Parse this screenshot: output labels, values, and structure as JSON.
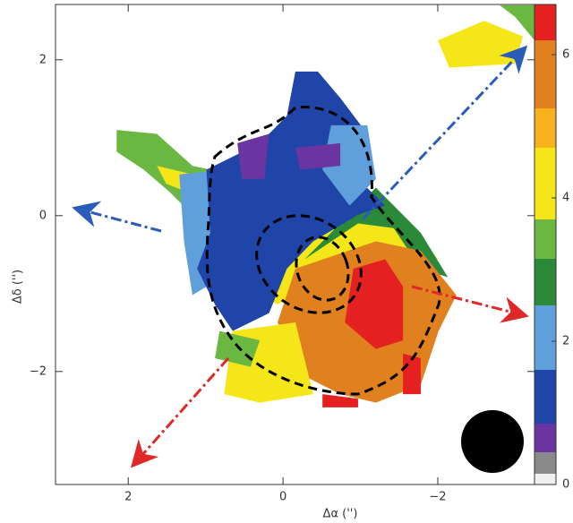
{
  "chart_data": {
    "type": "map",
    "xlabel": "Δα ('')",
    "ylabel": "Δδ ('')",
    "xlim": [
      2.94,
      -3.25
    ],
    "ylim": [
      -3.45,
      2.71
    ],
    "xticks": [
      2,
      0,
      {
        "value": -2,
        "label": "−2"
      }
    ],
    "yticks": [
      {
        "value": -2,
        "label": "−2"
      },
      0,
      2
    ],
    "colorbar": {
      "lim": [
        0,
        6.7
      ],
      "ticks": [
        0,
        2,
        4,
        6
      ],
      "levels": [
        0,
        0.15,
        0.45,
        0.85,
        1.6,
        2.5,
        3.15,
        3.7,
        4.7,
        5.25,
        6.2,
        6.7
      ],
      "colors": [
        "#f0f0f0",
        "#8a8a8a",
        "#6a35a0",
        "#1f45a8",
        "#5fa0dc",
        "#2a8a3a",
        "#6ab842",
        "#f5e61a",
        "#f7b21e",
        "#e0801e",
        "#e42020"
      ]
    },
    "regions": [
      {
        "value": 4.2,
        "points": [
          [
            -2.0,
            2.25
          ],
          [
            -2.6,
            2.5
          ],
          [
            -3.1,
            2.3
          ],
          [
            -3.0,
            1.95
          ],
          [
            -2.15,
            1.9
          ]
        ]
      },
      {
        "value": 3.4,
        "points": [
          [
            -2.8,
            2.7
          ],
          [
            -3.25,
            2.7
          ],
          [
            -3.25,
            2.25
          ],
          [
            -3.0,
            2.55
          ]
        ]
      },
      {
        "value": 3.4,
        "points": [
          [
            2.15,
            1.1
          ],
          [
            1.63,
            1.05
          ],
          [
            1.17,
            0.64
          ],
          [
            0.94,
            0.59
          ],
          [
            1.17,
            0.01
          ],
          [
            1.46,
            0.3
          ],
          [
            1.8,
            0.59
          ],
          [
            2.15,
            0.82
          ]
        ]
      },
      {
        "value": 4.2,
        "points": [
          [
            1.63,
            0.64
          ],
          [
            1.17,
            0.53
          ],
          [
            1.23,
            0.3
          ],
          [
            1.51,
            0.41
          ]
        ]
      },
      {
        "value": 4.2,
        "points": [
          [
            0.18,
            -0.45
          ],
          [
            -0.74,
            0.01
          ],
          [
            -1.55,
            -0.1
          ],
          [
            -2.01,
            -0.56
          ],
          [
            -1.43,
            -0.56
          ],
          [
            -0.51,
            -0.79
          ],
          [
            0.07,
            -1.14
          ],
          [
            0.3,
            -1.02
          ]
        ]
      },
      {
        "value": 2.8,
        "points": [
          [
            -1.2,
            0.36
          ],
          [
            -1.78,
            -0.22
          ],
          [
            -2.13,
            -0.79
          ],
          [
            -1.78,
            -0.68
          ],
          [
            -1.43,
            -0.16
          ],
          [
            -0.97,
            -0.1
          ],
          [
            -0.28,
            -0.56
          ],
          [
            -0.05,
            -0.79
          ]
        ]
      },
      {
        "value": 2.0,
        "points": [
          [
            1.34,
            0.53
          ],
          [
            0.76,
            0.59
          ],
          [
            0.65,
            -0.33
          ],
          [
            0.99,
            -0.91
          ],
          [
            1.17,
            -1.02
          ],
          [
            1.28,
            -0.33
          ]
        ]
      },
      {
        "value": 1.2,
        "points": [
          [
            0.99,
            0.59
          ],
          [
            0.3,
            0.93
          ],
          [
            -0.05,
            1.28
          ],
          [
            -0.16,
            1.85
          ],
          [
            -0.45,
            1.85
          ],
          [
            -0.74,
            1.51
          ],
          [
            -1.09,
            1.05
          ],
          [
            -0.97,
            0.47
          ],
          [
            -1.32,
            0.13
          ],
          [
            -0.97,
            0.01
          ],
          [
            -0.39,
            -0.33
          ],
          [
            -0.05,
            -0.68
          ],
          [
            0.18,
            -1.25
          ],
          [
            0.65,
            -1.48
          ],
          [
            0.88,
            -1.14
          ],
          [
            1.11,
            -0.68
          ],
          [
            0.94,
            -0.22
          ]
        ]
      },
      {
        "value": 2.0,
        "points": [
          [
            -0.62,
            1.16
          ],
          [
            -1.09,
            1.16
          ],
          [
            -1.2,
            0.47
          ],
          [
            -0.86,
            0.13
          ],
          [
            -0.51,
            0.59
          ]
        ]
      },
      {
        "value": 0.6,
        "points": [
          [
            0.59,
            0.93
          ],
          [
            0.18,
            1.05
          ],
          [
            0.24,
            0.47
          ],
          [
            0.53,
            0.47
          ]
        ]
      },
      {
        "value": 0.6,
        "points": [
          [
            -0.16,
            0.87
          ],
          [
            -0.74,
            0.93
          ],
          [
            -0.74,
            0.64
          ],
          [
            -0.22,
            0.59
          ]
        ]
      },
      {
        "value": 5.7,
        "points": [
          [
            -0.16,
            -0.68
          ],
          [
            -1.2,
            -0.33
          ],
          [
            -1.78,
            -0.45
          ],
          [
            -2.24,
            -1.02
          ],
          [
            -2.01,
            -1.48
          ],
          [
            -1.78,
            -2.17
          ],
          [
            -1.2,
            -2.4
          ],
          [
            -0.74,
            -2.29
          ],
          [
            -0.28,
            -2.06
          ],
          [
            0.07,
            -1.37
          ]
        ]
      },
      {
        "value": 6.4,
        "points": [
          [
            -0.91,
            -0.68
          ],
          [
            -1.32,
            -0.56
          ],
          [
            -1.55,
            -0.91
          ],
          [
            -1.55,
            -1.6
          ],
          [
            -1.2,
            -1.71
          ],
          [
            -0.8,
            -1.37
          ]
        ]
      },
      {
        "value": 6.4,
        "points": [
          [
            -0.51,
            -2.29
          ],
          [
            -0.97,
            -2.35
          ],
          [
            -0.97,
            -2.46
          ],
          [
            -0.51,
            -2.46
          ]
        ]
      },
      {
        "value": 6.4,
        "points": [
          [
            -1.55,
            -1.77
          ],
          [
            -1.78,
            -1.83
          ],
          [
            -1.78,
            -2.29
          ],
          [
            -1.55,
            -2.29
          ]
        ]
      },
      {
        "value": 4.2,
        "points": [
          [
            0.65,
            -1.48
          ],
          [
            -0.16,
            -1.37
          ],
          [
            -0.39,
            -2.29
          ],
          [
            0.3,
            -2.4
          ],
          [
            0.76,
            -2.29
          ]
        ]
      },
      {
        "value": 3.4,
        "points": [
          [
            0.82,
            -1.48
          ],
          [
            0.3,
            -1.6
          ],
          [
            0.42,
            -1.94
          ],
          [
            0.88,
            -1.83
          ]
        ]
      }
    ]
  }
}
